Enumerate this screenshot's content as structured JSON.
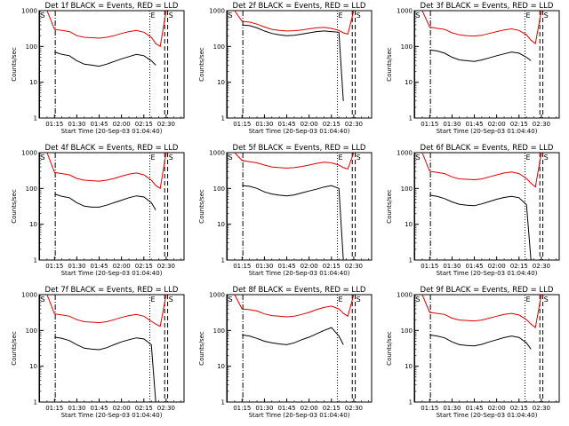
{
  "figure": {
    "panel_titles": [
      "Det 1f BLACK = Events, RED = LLD",
      "Det 2f BLACK = Events, RED = LLD",
      "Det 3f BLACK = Events, RED = LLD",
      "Det 4f BLACK = Events, RED = LLD",
      "Det 5f BLACK = Events, RED = LLD",
      "Det 6f BLACK = Events, RED = LLD",
      "Det 7f BLACK = Events, RED = LLD",
      "Det 8f BLACK = Events, RED = LLD",
      "Det 9f BLACK = Events, RED = LLD"
    ],
    "xlabel": "Start Time (20-Sep-03 01:04:40)",
    "ylabel": "Counts/sec",
    "x_tick_labels": [
      "01:15",
      "01:30",
      "01:45",
      "02:00",
      "02:15",
      "02:30"
    ],
    "y_tick_labels": [
      "1",
      "10",
      "100",
      "1000"
    ],
    "marker_labels": [
      "S",
      "E",
      "S"
    ],
    "colors": {
      "events": "#000000",
      "lld": "#dd0000",
      "axes": "#000000"
    }
  },
  "chart_data": [
    {
      "type": "line",
      "title": "Det 1f BLACK = Events, RED = LLD",
      "xlabel": "Start Time (20-Sep-03 01:04:40)",
      "ylabel": "Counts/sec",
      "x_units": "HH:MM",
      "xlim": [
        "01:04:40",
        "02:42"
      ],
      "ylim": [
        1,
        1000
      ],
      "y_scale": "log",
      "x": [
        "01:10",
        "01:15",
        "01:20",
        "01:25",
        "01:30",
        "01:35",
        "01:40",
        "01:45",
        "01:50",
        "01:55",
        "02:00",
        "02:05",
        "02:10",
        "02:15",
        "02:20",
        "02:23",
        "02:26",
        "02:30"
      ],
      "series": [
        {
          "name": "BLACK = Events",
          "values": [
            null,
            70,
            60,
            55,
            40,
            32,
            30,
            28,
            32,
            38,
            45,
            52,
            60,
            55,
            40,
            30,
            null,
            null
          ]
        },
        {
          "name": "RED = LLD",
          "values": [
            1000,
            300,
            280,
            260,
            200,
            180,
            175,
            170,
            180,
            200,
            230,
            260,
            280,
            250,
            180,
            120,
            100,
            1000
          ]
        }
      ],
      "markers": [
        {
          "label": "S",
          "x": "01:05",
          "style": "solid"
        },
        {
          "label": "",
          "x": "01:15:30",
          "style": "dash-dot"
        },
        {
          "label": "E",
          "x": "02:19",
          "style": "dotted"
        },
        {
          "label": "",
          "x": "02:29",
          "style": "dashed"
        },
        {
          "label": "S",
          "x": "02:31",
          "style": "dashed"
        }
      ]
    },
    {
      "type": "line",
      "title": "Det 2f BLACK = Events, RED = LLD",
      "xlabel": "Start Time (20-Sep-03 01:04:40)",
      "ylabel": "Counts/sec",
      "x_units": "HH:MM",
      "xlim": [
        "01:04:40",
        "02:42"
      ],
      "ylim": [
        1,
        1000
      ],
      "y_scale": "log",
      "x": [
        "01:10",
        "01:15",
        "01:20",
        "01:25",
        "01:30",
        "01:35",
        "01:40",
        "01:45",
        "01:50",
        "01:55",
        "02:00",
        "02:05",
        "02:10",
        "02:15",
        "02:20",
        "02:23",
        "02:26",
        "02:30"
      ],
      "series": [
        {
          "name": "BLACK = Events",
          "values": [
            null,
            400,
            380,
            330,
            270,
            230,
            210,
            200,
            205,
            220,
            240,
            260,
            270,
            260,
            250,
            3,
            null,
            null
          ]
        },
        {
          "name": "RED = LLD",
          "values": [
            1000,
            500,
            480,
            420,
            350,
            300,
            280,
            270,
            275,
            290,
            310,
            330,
            340,
            320,
            280,
            240,
            220,
            1000
          ]
        }
      ],
      "markers": [
        {
          "label": "S",
          "x": "01:05",
          "style": "solid"
        },
        {
          "label": "",
          "x": "01:15:30",
          "style": "dash-dot"
        },
        {
          "label": "E",
          "x": "02:19",
          "style": "dotted"
        },
        {
          "label": "",
          "x": "02:29",
          "style": "dashed"
        },
        {
          "label": "S",
          "x": "02:31",
          "style": "dashed"
        }
      ]
    },
    {
      "type": "line",
      "title": "Det 3f BLACK = Events, RED = LLD",
      "xlabel": "Start Time (20-Sep-03 01:04:40)",
      "ylabel": "Counts/sec",
      "x_units": "HH:MM",
      "xlim": [
        "01:04:40",
        "02:42"
      ],
      "ylim": [
        1,
        1000
      ],
      "y_scale": "log",
      "x": [
        "01:10",
        "01:15",
        "01:20",
        "01:25",
        "01:30",
        "01:35",
        "01:40",
        "01:45",
        "01:50",
        "01:55",
        "02:00",
        "02:05",
        "02:10",
        "02:15",
        "02:20",
        "02:23",
        "02:26",
        "02:30"
      ],
      "series": [
        {
          "name": "BLACK = Events",
          "values": [
            null,
            80,
            75,
            65,
            50,
            42,
            40,
            38,
            42,
            48,
            55,
            62,
            70,
            65,
            50,
            40,
            null,
            null
          ]
        },
        {
          "name": "RED = LLD",
          "values": [
            1000,
            350,
            320,
            300,
            240,
            210,
            200,
            195,
            205,
            230,
            260,
            290,
            310,
            280,
            210,
            150,
            120,
            1000
          ]
        }
      ],
      "markers": [
        {
          "label": "S",
          "x": "01:05",
          "style": "solid"
        },
        {
          "label": "",
          "x": "01:15:30",
          "style": "dash-dot"
        },
        {
          "label": "E",
          "x": "02:19",
          "style": "dotted"
        },
        {
          "label": "",
          "x": "02:29",
          "style": "dashed"
        },
        {
          "label": "S",
          "x": "02:31",
          "style": "dashed"
        }
      ]
    },
    {
      "type": "line",
      "title": "Det 4f BLACK = Events, RED = LLD",
      "xlabel": "Start Time (20-Sep-03 01:04:40)",
      "ylabel": "Counts/sec",
      "x_units": "HH:MM",
      "xlim": [
        "01:04:40",
        "02:42"
      ],
      "ylim": [
        1,
        1000
      ],
      "y_scale": "log",
      "x": [
        "01:10",
        "01:15",
        "01:20",
        "01:25",
        "01:30",
        "01:35",
        "01:40",
        "01:45",
        "01:50",
        "01:55",
        "02:00",
        "02:05",
        "02:10",
        "02:15",
        "02:20",
        "02:23",
        "02:26",
        "02:30"
      ],
      "series": [
        {
          "name": "BLACK = Events",
          "values": [
            null,
            70,
            60,
            55,
            40,
            32,
            30,
            30,
            34,
            40,
            47,
            55,
            62,
            58,
            40,
            25,
            null,
            null
          ]
        },
        {
          "name": "RED = LLD",
          "values": [
            1000,
            280,
            260,
            240,
            190,
            170,
            165,
            160,
            170,
            190,
            220,
            250,
            270,
            240,
            170,
            120,
            100,
            1000
          ]
        }
      ],
      "markers": [
        {
          "label": "S",
          "x": "01:05",
          "style": "solid"
        },
        {
          "label": "",
          "x": "01:15:30",
          "style": "dash-dot"
        },
        {
          "label": "E",
          "x": "02:19",
          "style": "dotted"
        },
        {
          "label": "",
          "x": "02:29",
          "style": "dashed"
        },
        {
          "label": "S",
          "x": "02:31",
          "style": "dashed"
        }
      ]
    },
    {
      "type": "line",
      "title": "Det 5f BLACK = Events, RED = LLD",
      "xlabel": "Start Time (20-Sep-03 01:04:40)",
      "ylabel": "Counts/sec",
      "x_units": "HH:MM",
      "xlim": [
        "01:04:40",
        "02:42"
      ],
      "ylim": [
        1,
        1000
      ],
      "y_scale": "log",
      "x": [
        "01:10",
        "01:15",
        "01:20",
        "01:25",
        "01:30",
        "01:35",
        "01:40",
        "01:45",
        "01:50",
        "01:55",
        "02:00",
        "02:05",
        "02:10",
        "02:15",
        "02:20",
        "02:23",
        "02:26",
        "02:30"
      ],
      "series": [
        {
          "name": "BLACK = Events",
          "values": [
            null,
            120,
            115,
            100,
            80,
            70,
            65,
            62,
            66,
            75,
            85,
            95,
            110,
            120,
            100,
            1,
            null,
            null
          ]
        },
        {
          "name": "RED = LLD",
          "values": [
            1000,
            600,
            560,
            520,
            450,
            400,
            380,
            370,
            380,
            410,
            450,
            500,
            540,
            520,
            450,
            380,
            350,
            1000
          ]
        }
      ],
      "markers": [
        {
          "label": "S",
          "x": "01:05",
          "style": "solid"
        },
        {
          "label": "",
          "x": "01:15:30",
          "style": "dash-dot"
        },
        {
          "label": "E",
          "x": "02:19",
          "style": "dotted"
        },
        {
          "label": "",
          "x": "02:29",
          "style": "dashed"
        },
        {
          "label": "S",
          "x": "02:31",
          "style": "dashed"
        }
      ]
    },
    {
      "type": "line",
      "title": "Det 6f BLACK = Events, RED = LLD",
      "xlabel": "Start Time (20-Sep-03 01:04:40)",
      "ylabel": "Counts/sec",
      "x_units": "HH:MM",
      "xlim": [
        "01:04:40",
        "02:42"
      ],
      "ylim": [
        1,
        1000
      ],
      "y_scale": "log",
      "x": [
        "01:10",
        "01:15",
        "01:20",
        "01:25",
        "01:30",
        "01:35",
        "01:40",
        "01:45",
        "01:50",
        "01:55",
        "02:00",
        "02:05",
        "02:10",
        "02:15",
        "02:20",
        "02:23",
        "02:26",
        "02:30"
      ],
      "series": [
        {
          "name": "BLACK = Events",
          "values": [
            null,
            65,
            60,
            52,
            42,
            36,
            34,
            33,
            37,
            43,
            50,
            56,
            60,
            55,
            35,
            1,
            null,
            null
          ]
        },
        {
          "name": "RED = LLD",
          "values": [
            1000,
            300,
            280,
            260,
            210,
            185,
            180,
            175,
            185,
            210,
            240,
            270,
            290,
            260,
            190,
            140,
            110,
            1000
          ]
        }
      ],
      "markers": [
        {
          "label": "S",
          "x": "01:05",
          "style": "solid"
        },
        {
          "label": "",
          "x": "01:15:30",
          "style": "dash-dot"
        },
        {
          "label": "E",
          "x": "02:19",
          "style": "dotted"
        },
        {
          "label": "",
          "x": "02:29",
          "style": "dashed"
        },
        {
          "label": "S",
          "x": "02:31",
          "style": "dashed"
        }
      ]
    },
    {
      "type": "line",
      "title": "Det 7f BLACK = Events, RED = LLD",
      "xlabel": "Start Time (20-Sep-03 01:04:40)",
      "ylabel": "Counts/sec",
      "x_units": "HH:MM",
      "xlim": [
        "01:04:40",
        "02:42"
      ],
      "ylim": [
        1,
        1000
      ],
      "y_scale": "log",
      "x": [
        "01:10",
        "01:15",
        "01:20",
        "01:25",
        "01:30",
        "01:35",
        "01:40",
        "01:45",
        "01:50",
        "01:55",
        "02:00",
        "02:05",
        "02:10",
        "02:15",
        "02:20",
        "02:23",
        "02:26",
        "02:30"
      ],
      "series": [
        {
          "name": "BLACK = Events",
          "values": [
            null,
            65,
            60,
            52,
            40,
            32,
            30,
            29,
            33,
            40,
            48,
            55,
            62,
            58,
            40,
            1,
            null,
            null
          ]
        },
        {
          "name": "RED = LLD",
          "values": [
            1000,
            290,
            270,
            250,
            200,
            175,
            170,
            165,
            175,
            200,
            230,
            260,
            280,
            250,
            180,
            150,
            130,
            1000
          ]
        }
      ],
      "markers": [
        {
          "label": "S",
          "x": "01:05",
          "style": "solid"
        },
        {
          "label": "",
          "x": "01:15:30",
          "style": "dash-dot"
        },
        {
          "label": "E",
          "x": "02:19",
          "style": "dotted"
        },
        {
          "label": "",
          "x": "02:29",
          "style": "dashed"
        },
        {
          "label": "S",
          "x": "02:31",
          "style": "dashed"
        }
      ]
    },
    {
      "type": "line",
      "title": "Det 8f BLACK = Events, RED = LLD",
      "xlabel": "Start Time (20-Sep-03 01:04:40)",
      "ylabel": "Counts/sec",
      "x_units": "HH:MM",
      "xlim": [
        "01:04:40",
        "02:42"
      ],
      "ylim": [
        1,
        1000
      ],
      "y_scale": "log",
      "x": [
        "01:10",
        "01:15",
        "01:20",
        "01:25",
        "01:30",
        "01:35",
        "01:40",
        "01:45",
        "01:50",
        "01:55",
        "02:00",
        "02:05",
        "02:10",
        "02:15",
        "02:20",
        "02:23",
        "02:26",
        "02:30"
      ],
      "series": [
        {
          "name": "BLACK = Events",
          "values": [
            null,
            75,
            70,
            60,
            50,
            45,
            42,
            40,
            45,
            55,
            65,
            80,
            100,
            120,
            70,
            40,
            null,
            null
          ]
        },
        {
          "name": "RED = LLD",
          "values": [
            1000,
            400,
            380,
            350,
            290,
            260,
            250,
            240,
            250,
            280,
            320,
            380,
            440,
            480,
            400,
            300,
            250,
            1000
          ]
        }
      ],
      "markers": [
        {
          "label": "S",
          "x": "01:05",
          "style": "solid"
        },
        {
          "label": "",
          "x": "01:15:30",
          "style": "dash-dot"
        },
        {
          "label": "E",
          "x": "02:19",
          "style": "dotted"
        },
        {
          "label": "",
          "x": "02:29",
          "style": "dashed"
        },
        {
          "label": "S",
          "x": "02:31",
          "style": "dashed"
        }
      ]
    },
    {
      "type": "line",
      "title": "Det 9f BLACK = Events, RED = LLD",
      "xlabel": "Start Time (20-Sep-03 01:04:40)",
      "ylabel": "Counts/sec",
      "x_units": "HH:MM",
      "xlim": [
        "01:04:40",
        "02:42"
      ],
      "ylim": [
        1,
        1000
      ],
      "y_scale": "log",
      "x": [
        "01:10",
        "01:15",
        "01:20",
        "01:25",
        "01:30",
        "01:35",
        "01:40",
        "01:45",
        "01:50",
        "01:55",
        "02:00",
        "02:05",
        "02:10",
        "02:15",
        "02:20",
        "02:23",
        "02:26",
        "02:30"
      ],
      "series": [
        {
          "name": "BLACK = Events",
          "values": [
            null,
            75,
            70,
            62,
            48,
            40,
            38,
            37,
            41,
            48,
            55,
            63,
            70,
            64,
            45,
            30,
            null,
            null
          ]
        },
        {
          "name": "RED = LLD",
          "values": [
            1000,
            320,
            300,
            280,
            220,
            195,
            190,
            185,
            195,
            220,
            250,
            280,
            300,
            270,
            200,
            150,
            120,
            1000
          ]
        }
      ],
      "markers": [
        {
          "label": "S",
          "x": "01:05",
          "style": "solid"
        },
        {
          "label": "",
          "x": "01:15:30",
          "style": "dash-dot"
        },
        {
          "label": "E",
          "x": "02:19",
          "style": "dotted"
        },
        {
          "label": "",
          "x": "02:29",
          "style": "dashed"
        },
        {
          "label": "S",
          "x": "02:31",
          "style": "dashed"
        }
      ]
    }
  ]
}
